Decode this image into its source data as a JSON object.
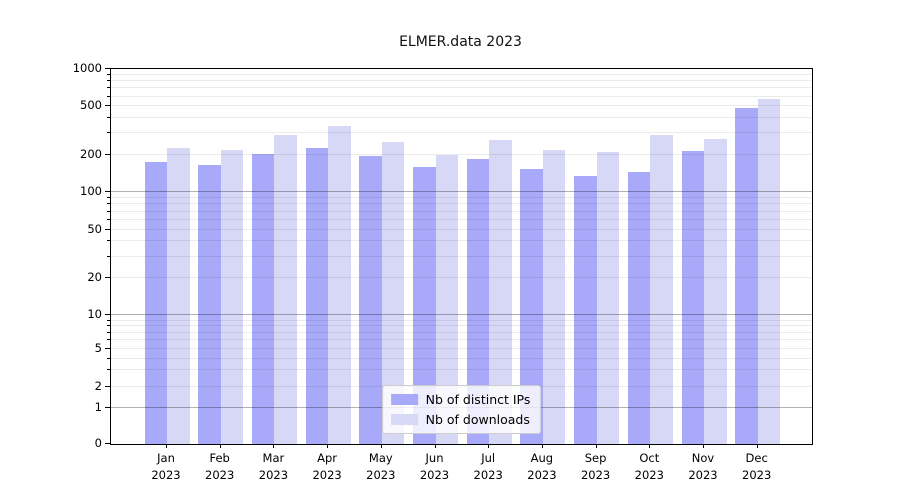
{
  "title": "ELMER.data 2023",
  "colors": {
    "distinct_ips": "#a9a9fa",
    "downloads": "#d7d7f6",
    "axis": "#000000",
    "grid_major": "rgba(0,0,0,0.30)",
    "grid_minor": "rgba(0,0,0,0.08)"
  },
  "legend": {
    "items": [
      {
        "label": "Nb of distinct IPs",
        "color_key": "distinct_ips"
      },
      {
        "label": "Nb of downloads",
        "color_key": "downloads"
      }
    ]
  },
  "chart_data": {
    "type": "bar",
    "title": "ELMER.data 2023",
    "categories": [
      "Jan 2023",
      "Feb 2023",
      "Mar 2023",
      "Apr 2023",
      "May 2023",
      "Jun 2023",
      "Jul 2023",
      "Aug 2023",
      "Sep 2023",
      "Oct 2023",
      "Nov 2023",
      "Dec 2023"
    ],
    "x_tick_labels": [
      [
        "Jan",
        "2023"
      ],
      [
        "Feb",
        "2023"
      ],
      [
        "Mar",
        "2023"
      ],
      [
        "Apr",
        "2023"
      ],
      [
        "May",
        "2023"
      ],
      [
        "Jun",
        "2023"
      ],
      [
        "Jul",
        "2023"
      ],
      [
        "Aug",
        "2023"
      ],
      [
        "Sep",
        "2023"
      ],
      [
        "Oct",
        "2023"
      ],
      [
        "Nov",
        "2023"
      ],
      [
        "Dec",
        "2023"
      ]
    ],
    "series": [
      {
        "name": "Nb of distinct IPs",
        "values": [
          175,
          165,
          203,
          228,
          196,
          160,
          184,
          154,
          136,
          145,
          215,
          488
        ]
      },
      {
        "name": "Nb of downloads",
        "values": [
          226,
          218,
          292,
          347,
          253,
          198,
          264,
          220,
          211,
          289,
          267,
          568
        ]
      }
    ],
    "yscale": "symlog",
    "ylim": [
      0,
      1000
    ],
    "y_ticks": [
      0,
      1,
      2,
      5,
      10,
      20,
      50,
      100,
      200,
      500,
      1000
    ],
    "y_tick_labels": [
      "0",
      "1",
      "2",
      "5",
      "10",
      "20",
      "50",
      "100",
      "200",
      "500",
      "1000"
    ],
    "y_minor_gridlines": [
      2,
      3,
      4,
      5,
      6,
      7,
      8,
      9,
      20,
      30,
      40,
      50,
      60,
      70,
      80,
      90,
      200,
      300,
      400,
      500,
      600,
      700,
      800,
      900
    ],
    "y_major_gridlines": [
      1,
      10,
      100
    ],
    "grid": true,
    "legend_position": "lower center"
  }
}
